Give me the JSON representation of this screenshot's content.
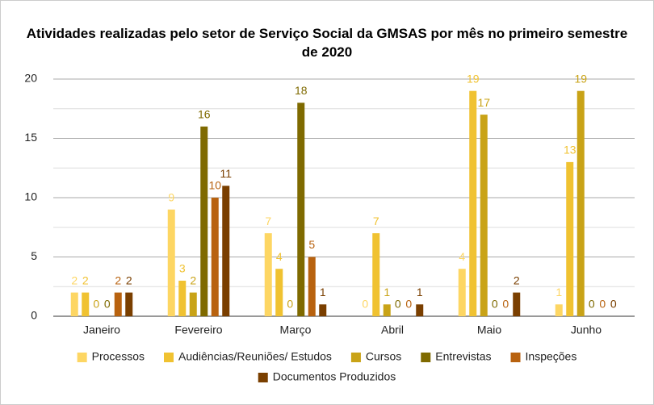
{
  "chart_data": {
    "type": "bar",
    "title": "Atividades realizadas pelo setor de Serviço Social da GMSAS por mês no primeiro semestre de 2020",
    "categories": [
      "Janeiro",
      "Fevereiro",
      "Março",
      "Abril",
      "Maio",
      "Junho"
    ],
    "series": [
      {
        "name": "Processos",
        "color": "#fdd663",
        "values": [
          2,
          9,
          7,
          0,
          4,
          1
        ]
      },
      {
        "name": "Audiências/Reuniões/ Estudos",
        "color": "#f0c231",
        "values": [
          2,
          3,
          4,
          7,
          19,
          13
        ]
      },
      {
        "name": "Cursos",
        "color": "#c9a317",
        "values": [
          0,
          2,
          0,
          1,
          17,
          19
        ]
      },
      {
        "name": "Entrevistas",
        "color": "#7f6a00",
        "values": [
          0,
          16,
          18,
          0,
          0,
          0
        ]
      },
      {
        "name": "Inspeções",
        "color": "#b8620f",
        "values": [
          2,
          10,
          5,
          0,
          0,
          0
        ]
      },
      {
        "name": "Documentos Produzidos",
        "color": "#7a3f00",
        "values": [
          2,
          11,
          1,
          1,
          2,
          0
        ]
      }
    ],
    "ylim": [
      0,
      20
    ],
    "yticks": [
      0,
      5,
      10,
      15,
      20
    ],
    "grid": true,
    "minor_grid": true,
    "legend": "bottom"
  }
}
